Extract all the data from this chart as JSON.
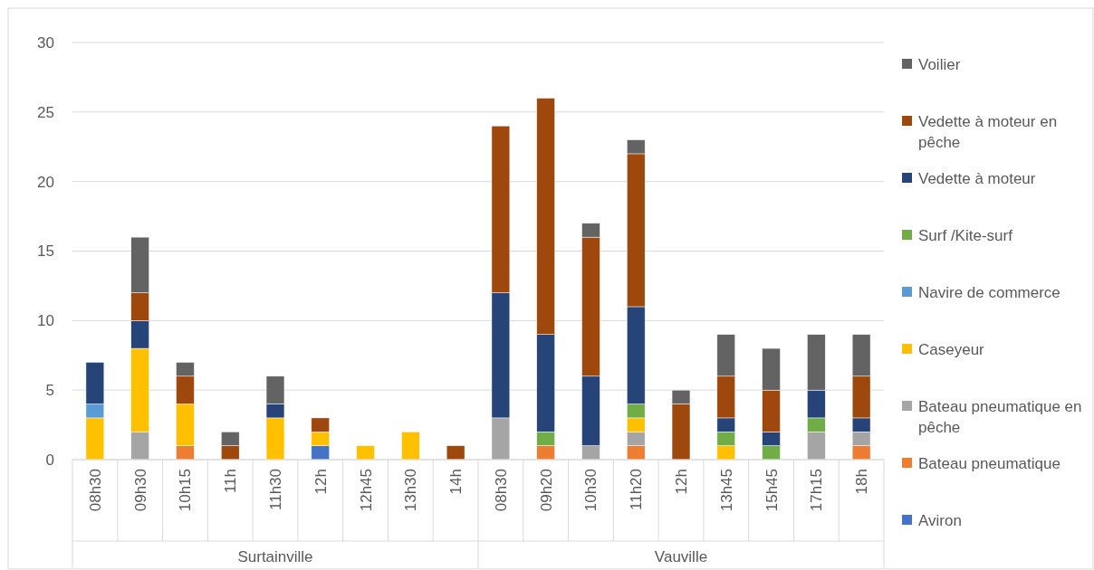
{
  "chart_data": {
    "type": "bar",
    "stacked": true,
    "categories": [
      "08h30",
      "09h30",
      "10h15",
      "11h",
      "11h30",
      "12h",
      "12h45",
      "13h30",
      "14h",
      "08h30",
      "09h20",
      "10h30",
      "11h20",
      "12h",
      "13h45",
      "15h45",
      "17h15",
      "18h"
    ],
    "series": [
      {
        "name": "Aviron",
        "color": "#4472c4",
        "values": [
          0,
          0,
          0,
          0,
          0,
          1,
          0,
          0,
          0,
          0,
          0,
          0,
          0,
          0,
          0,
          0,
          0,
          0
        ]
      },
      {
        "name": "Bateau pneumatique",
        "color": "#ed7d31",
        "values": [
          0,
          0,
          1,
          0,
          0,
          0,
          0,
          0,
          0,
          0,
          1,
          0,
          1,
          0,
          0,
          0,
          0,
          1
        ]
      },
      {
        "name": "Bateau pneumatique en pêche",
        "color": "#a5a5a5",
        "values": [
          0,
          2,
          0,
          0,
          0,
          0,
          0,
          0,
          0,
          3,
          0,
          1,
          1,
          0,
          0,
          0,
          2,
          1
        ]
      },
      {
        "name": "Caseyeur",
        "color": "#ffc000",
        "values": [
          3,
          6,
          3,
          0,
          3,
          1,
          1,
          2,
          0,
          0,
          0,
          0,
          1,
          0,
          1,
          0,
          0,
          0
        ]
      },
      {
        "name": "Navire de commerce",
        "color": "#5b9bd5",
        "values": [
          1,
          0,
          0,
          0,
          0,
          0,
          0,
          0,
          0,
          0,
          0,
          0,
          0,
          0,
          0,
          0,
          0,
          0
        ]
      },
      {
        "name": "Surf /Kite-surf",
        "color": "#70ad47",
        "values": [
          0,
          0,
          0,
          0,
          0,
          0,
          0,
          0,
          0,
          0,
          1,
          0,
          1,
          0,
          1,
          1,
          1,
          0
        ]
      },
      {
        "name": "Vedette à moteur",
        "color": "#264478",
        "values": [
          3,
          2,
          0,
          0,
          1,
          0,
          0,
          0,
          0,
          9,
          7,
          5,
          7,
          0,
          1,
          1,
          2,
          1
        ]
      },
      {
        "name": "Vedette à moteur en pêche",
        "color": "#9e480e",
        "values": [
          0,
          2,
          2,
          1,
          0,
          1,
          0,
          0,
          1,
          12,
          17,
          10,
          11,
          4,
          3,
          3,
          0,
          3
        ]
      },
      {
        "name": "Voilier",
        "color": "#636363",
        "values": [
          0,
          4,
          1,
          1,
          2,
          0,
          0,
          0,
          0,
          0,
          0,
          1,
          1,
          1,
          3,
          3,
          4,
          3
        ]
      }
    ],
    "ylim": [
      0,
      30
    ],
    "yticks": [
      0,
      5,
      10,
      15,
      20,
      25,
      30
    ],
    "grid": "y",
    "legend": "right",
    "annotations": [
      "Surtainville",
      "Vauville"
    ]
  }
}
